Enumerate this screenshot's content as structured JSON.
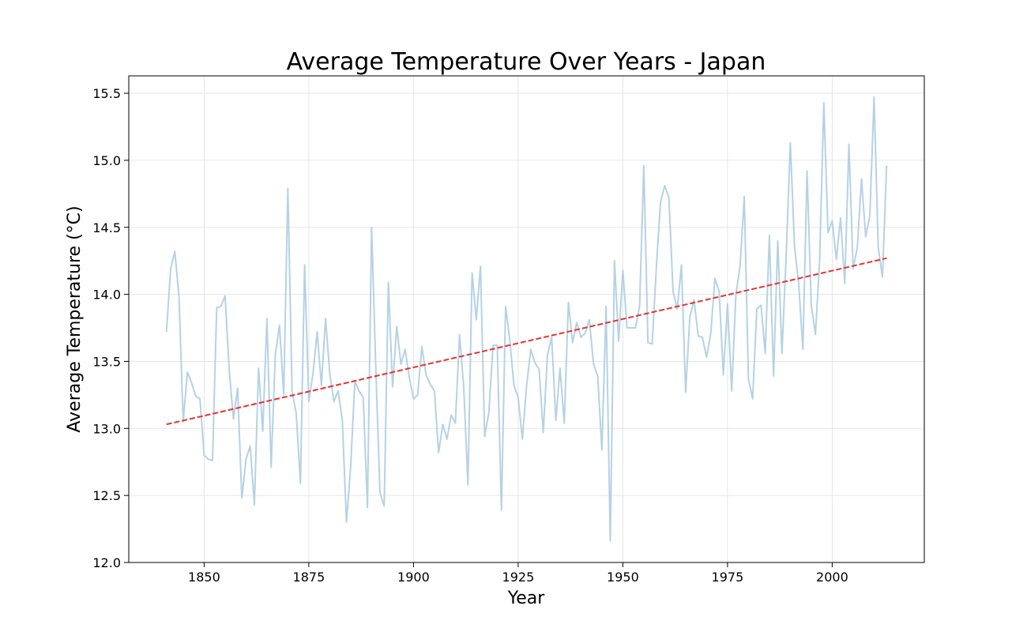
{
  "chart_data": {
    "type": "line",
    "title": "Average Temperature Over Years - Japan",
    "xlabel": "Year",
    "ylabel": "Average Temperature (°C)",
    "xlim": [
      1832,
      2022
    ],
    "ylim": [
      12.0,
      15.63
    ],
    "xticks": [
      1850,
      1875,
      1900,
      1925,
      1950,
      1975,
      2000
    ],
    "yticks": [
      12.0,
      12.5,
      13.0,
      13.5,
      14.0,
      14.5,
      15.0,
      15.5
    ],
    "ytick_labels": [
      "12.0",
      "12.5",
      "13.0",
      "13.5",
      "14.0",
      "14.5",
      "15.0",
      "15.5"
    ],
    "grid": true,
    "series": [
      {
        "color": "#b5d2e4",
        "style": "solid",
        "x": [
          1841,
          1842,
          1843,
          1844,
          1845,
          1846,
          1847,
          1848,
          1849,
          1850,
          1851,
          1852,
          1853,
          1854,
          1855,
          1856,
          1857,
          1858,
          1859,
          1860,
          1861,
          1862,
          1863,
          1864,
          1865,
          1866,
          1867,
          1868,
          1869,
          1870,
          1871,
          1872,
          1873,
          1874,
          1875,
          1876,
          1877,
          1878,
          1879,
          1880,
          1881,
          1882,
          1883,
          1884,
          1885,
          1886,
          1887,
          1888,
          1889,
          1890,
          1891,
          1892,
          1893,
          1894,
          1895,
          1896,
          1897,
          1898,
          1899,
          1900,
          1901,
          1902,
          1903,
          1904,
          1905,
          1906,
          1907,
          1908,
          1909,
          1910,
          1911,
          1912,
          1913,
          1914,
          1915,
          1916,
          1917,
          1918,
          1919,
          1920,
          1921,
          1922,
          1923,
          1924,
          1925,
          1926,
          1927,
          1928,
          1929,
          1930,
          1931,
          1932,
          1933,
          1934,
          1935,
          1936,
          1937,
          1938,
          1939,
          1940,
          1941,
          1942,
          1943,
          1944,
          1945,
          1946,
          1947,
          1948,
          1949,
          1950,
          1951,
          1952,
          1953,
          1954,
          1955,
          1956,
          1957,
          1958,
          1959,
          1960,
          1961,
          1962,
          1963,
          1964,
          1965,
          1966,
          1967,
          1968,
          1969,
          1970,
          1971,
          1972,
          1973,
          1974,
          1975,
          1976,
          1977,
          1978,
          1979,
          1980,
          1981,
          1982,
          1983,
          1984,
          1985,
          1986,
          1987,
          1988,
          1989,
          1990,
          1991,
          1992,
          1993,
          1994,
          1995,
          1996,
          1997,
          1998,
          1999,
          2000,
          2001,
          2002,
          2003,
          2004,
          2005,
          2006,
          2007,
          2008,
          2009,
          2010,
          2011,
          2012,
          2013
        ],
        "y": [
          13.72,
          14.19,
          14.32,
          13.98,
          13.05,
          13.42,
          13.34,
          13.24,
          13.22,
          12.8,
          12.77,
          12.76,
          13.9,
          13.91,
          13.99,
          13.43,
          13.07,
          13.3,
          12.48,
          12.77,
          12.87,
          12.43,
          13.45,
          12.98,
          13.82,
          12.71,
          13.55,
          13.77,
          13.25,
          14.79,
          13.28,
          13.11,
          12.59,
          14.22,
          13.2,
          13.41,
          13.72,
          13.32,
          13.82,
          13.41,
          13.2,
          13.28,
          13.06,
          12.3,
          12.72,
          13.35,
          13.28,
          13.23,
          12.41,
          14.5,
          13.45,
          12.52,
          12.42,
          14.09,
          13.31,
          13.76,
          13.48,
          13.59,
          13.38,
          13.22,
          13.25,
          13.61,
          13.4,
          13.33,
          13.28,
          12.82,
          13.03,
          12.92,
          13.1,
          13.04,
          13.7,
          13.31,
          12.58,
          14.16,
          13.81,
          14.21,
          12.94,
          13.12,
          13.62,
          13.62,
          12.39,
          13.91,
          13.66,
          13.32,
          13.23,
          12.92,
          13.31,
          13.59,
          13.49,
          13.44,
          12.97,
          13.55,
          13.68,
          13.06,
          13.45,
          13.04,
          13.94,
          13.64,
          13.79,
          13.68,
          13.71,
          13.81,
          13.48,
          13.39,
          12.84,
          13.91,
          12.16,
          14.25,
          13.65,
          14.18,
          13.75,
          13.75,
          13.75,
          13.91,
          14.96,
          13.64,
          13.63,
          14.2,
          14.69,
          14.81,
          14.72,
          14.02,
          13.89,
          14.22,
          13.27,
          13.83,
          13.96,
          13.69,
          13.68,
          13.53,
          13.71,
          14.12,
          14.02,
          13.4,
          13.93,
          13.28,
          14.0,
          14.21,
          14.73,
          13.37,
          13.22,
          13.89,
          13.92,
          13.56,
          14.44,
          13.39,
          14.4,
          13.56,
          14.28,
          15.13,
          14.36,
          14.08,
          13.59,
          14.92,
          13.92,
          13.7,
          14.25,
          15.43,
          14.46,
          14.55,
          14.26,
          14.57,
          14.08,
          15.12,
          14.19,
          14.35,
          14.86,
          14.43,
          14.59,
          15.47,
          14.35,
          14.13,
          14.96
        ]
      },
      {
        "color": "#e8332e",
        "style": "dashed",
        "x": [
          1841,
          2013
        ],
        "y": [
          13.03,
          14.27
        ]
      }
    ]
  }
}
